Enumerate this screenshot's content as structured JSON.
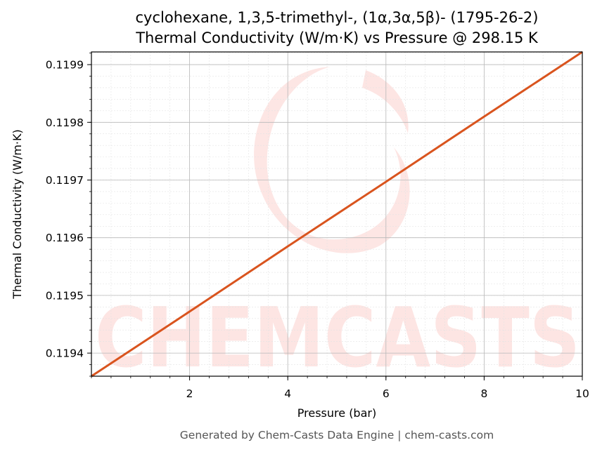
{
  "chart_data": {
    "type": "line",
    "title": "cyclohexane, 1,3,5-trimethyl-, (1α,3α,5β)- (1795-26-2)",
    "subtitle": "Thermal Conductivity (W/m·K) vs Pressure @ 298.15 K",
    "xlabel": "Pressure (bar)",
    "ylabel": "Thermal Conductivity (W/m·K)",
    "xlim": [
      0.0,
      10.0
    ],
    "ylim": [
      0.11936,
      0.119922
    ],
    "x_ticks": [
      2,
      4,
      6,
      8,
      10
    ],
    "x_tick_labels": [
      "2",
      "4",
      "6",
      "8",
      "10"
    ],
    "y_ticks": [
      0.1194,
      0.1195,
      0.1196,
      0.1197,
      0.1198,
      0.1199
    ],
    "y_tick_labels": [
      "0.1194",
      "0.1195",
      "0.1196",
      "0.1197",
      "0.1198",
      "0.1199"
    ],
    "grid": true,
    "series": [
      {
        "color": "#d9541e",
        "x": [
          0.0,
          2.0,
          4.0,
          6.0,
          8.0,
          10.0
        ],
        "y": [
          0.11936,
          0.119472,
          0.119585,
          0.119697,
          0.11981,
          0.119922
        ]
      }
    ]
  },
  "footer": "Generated by Chem-Casts Data Engine | chem-casts.com",
  "watermark": {
    "text": "CHEMCASTS",
    "color": "#fde3e1"
  }
}
